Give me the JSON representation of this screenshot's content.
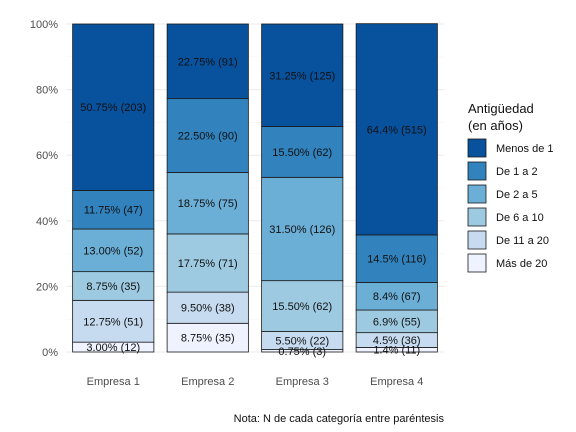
{
  "chart_data": {
    "type": "bar",
    "stacked": "percent",
    "categories": [
      "Empresa 1",
      "Empresa 2",
      "Empresa 3",
      "Empresa 4"
    ],
    "ylim": [
      0,
      100
    ],
    "yticks": [
      0,
      20,
      40,
      60,
      80,
      100
    ],
    "ytick_labels": [
      "0%",
      "20%",
      "40%",
      "60%",
      "80%",
      "100%"
    ],
    "grid": true,
    "legend": {
      "title_lines": [
        "Antigüedad",
        "(en años)"
      ],
      "position": "right"
    },
    "series": [
      {
        "name": "Menos de 1",
        "color": "#08519c",
        "values": [
          50.75,
          22.75,
          31.25,
          64.4
        ],
        "labels": [
          "50.75% (203)",
          "22.75% (91)",
          "31.25% (125)",
          "64.4% (515)"
        ]
      },
      {
        "name": "De 1 a 2",
        "color": "#3182bd",
        "values": [
          11.75,
          22.5,
          15.5,
          14.5
        ],
        "labels": [
          "11.75% (47)",
          "22.50% (90)",
          "15.50% (62)",
          "14.5% (116)"
        ]
      },
      {
        "name": "De 2 a 5",
        "color": "#6baed6",
        "values": [
          13.0,
          18.75,
          31.5,
          8.4
        ],
        "labels": [
          "13.00% (52)",
          "18.75% (75)",
          "31.50% (126)",
          "8.4% (67)"
        ]
      },
      {
        "name": "De 6 a 10",
        "color": "#9ecae1",
        "values": [
          8.75,
          17.75,
          15.5,
          6.9
        ],
        "labels": [
          "8.75% (35)",
          "17.75% (71)",
          "15.50% (62)",
          "6.9% (55)"
        ]
      },
      {
        "name": "De 11 a 20",
        "color": "#c6dbef",
        "values": [
          12.75,
          9.5,
          5.5,
          4.5
        ],
        "labels": [
          "12.75% (51)",
          "9.50% (38)",
          "5.50% (22)",
          "4.5% (36)"
        ]
      },
      {
        "name": "Más de 20",
        "color": "#eff3ff",
        "values": [
          3.0,
          8.75,
          0.75,
          1.4
        ],
        "labels": [
          "3.00% (12)",
          "8.75% (35)",
          "0.75% (3)",
          "1.4% (11)"
        ]
      }
    ],
    "caption": "Nota: N de cada categoría entre paréntesis"
  }
}
